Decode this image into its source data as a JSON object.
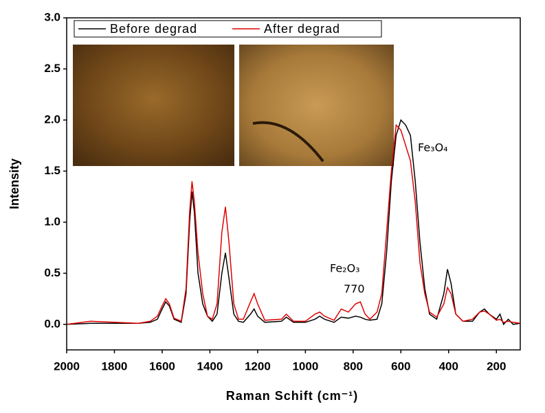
{
  "chart_data": {
    "type": "line",
    "x_label": "Raman Schift (cm⁻¹)",
    "y_label": "Intensity",
    "x": [
      2000,
      1900,
      1800,
      1700,
      1650,
      1620,
      1600,
      1585,
      1570,
      1550,
      1520,
      1500,
      1485,
      1475,
      1465,
      1450,
      1430,
      1410,
      1390,
      1370,
      1350,
      1335,
      1320,
      1300,
      1280,
      1260,
      1230,
      1215,
      1200,
      1170,
      1100,
      1080,
      1050,
      1000,
      960,
      940,
      920,
      880,
      850,
      820,
      790,
      770,
      750,
      730,
      700,
      680,
      660,
      640,
      620,
      600,
      580,
      560,
      540,
      520,
      500,
      480,
      450,
      420,
      405,
      390,
      370,
      340,
      300,
      270,
      250,
      230,
      200,
      185,
      170,
      150,
      130,
      100
    ],
    "series": [
      {
        "name": "Before degrad",
        "color": "#000000",
        "values": [
          0.0,
          0.01,
          0.01,
          0.01,
          0.02,
          0.05,
          0.15,
          0.22,
          0.18,
          0.05,
          0.02,
          0.3,
          1.0,
          1.3,
          1.1,
          0.5,
          0.2,
          0.08,
          0.03,
          0.1,
          0.5,
          0.7,
          0.45,
          0.1,
          0.03,
          0.02,
          0.1,
          0.15,
          0.08,
          0.02,
          0.03,
          0.07,
          0.02,
          0.02,
          0.05,
          0.08,
          0.05,
          0.02,
          0.07,
          0.06,
          0.08,
          0.07,
          0.05,
          0.04,
          0.05,
          0.2,
          0.7,
          1.4,
          1.85,
          2.0,
          1.95,
          1.85,
          1.4,
          0.8,
          0.35,
          0.1,
          0.05,
          0.3,
          0.54,
          0.4,
          0.1,
          0.03,
          0.03,
          0.12,
          0.15,
          0.1,
          0.05,
          0.1,
          0.0,
          0.05,
          0.0,
          0.01
        ]
      },
      {
        "name": "After degrad",
        "color": "#e00000",
        "values": [
          0.0,
          0.03,
          0.02,
          0.01,
          0.03,
          0.08,
          0.18,
          0.25,
          0.2,
          0.06,
          0.03,
          0.35,
          1.1,
          1.4,
          1.2,
          0.7,
          0.3,
          0.08,
          0.05,
          0.2,
          0.9,
          1.15,
          0.8,
          0.2,
          0.05,
          0.05,
          0.22,
          0.3,
          0.2,
          0.04,
          0.05,
          0.1,
          0.03,
          0.03,
          0.1,
          0.12,
          0.08,
          0.04,
          0.15,
          0.12,
          0.2,
          0.22,
          0.1,
          0.05,
          0.12,
          0.3,
          0.9,
          1.5,
          1.95,
          1.9,
          1.75,
          1.6,
          1.2,
          0.6,
          0.3,
          0.12,
          0.07,
          0.2,
          0.36,
          0.3,
          0.1,
          0.03,
          0.05,
          0.12,
          0.13,
          0.1,
          0.04,
          0.05,
          0.02,
          0.03,
          0.02,
          0.01
        ]
      }
    ],
    "xlim": [
      2000,
      100
    ],
    "xticks": [
      2000,
      1800,
      1600,
      1400,
      1200,
      1000,
      800,
      600,
      400,
      200
    ],
    "ylim": [
      -0.25,
      3.0
    ],
    "yticks": [
      {
        "value": 0,
        "label": "0.0"
      },
      {
        "value": 0.5,
        "label": "0.5"
      },
      {
        "value": 1,
        "label": "1.0"
      },
      {
        "value": 1.5,
        "label": "1.5"
      },
      {
        "value": 2,
        "label": "2.0"
      },
      {
        "value": 2.5,
        "label": "2.5"
      },
      {
        "value": 3,
        "label": "3.0"
      }
    ],
    "annotations": [
      "Fe₃O₄",
      "Fe₂O₃",
      "770"
    ],
    "legend": "top-left"
  }
}
